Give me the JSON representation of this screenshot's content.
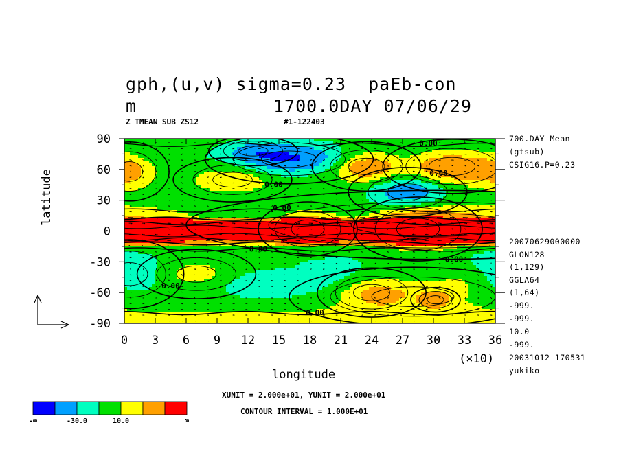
{
  "title": {
    "line1": "gph,(u,v) sigma=0.23  paEb-con",
    "line2_left": "m",
    "line2_right": "1700.0DAY 07/06/29"
  },
  "subtitle_left": "Z TMEAN SUB ZS12",
  "subtitle_right": "#1-122403",
  "side_info_top": [
    "700.DAY Mean",
    "(gtsub)",
    "CSIG16.P=0.23"
  ],
  "side_info_bottom": [
    "20070629000000",
    "GLON128",
    "(1,129)",
    "GGLA64",
    "(1,64)",
    "-999.",
    "-999.",
    "10.0",
    "-999.",
    "20031012 170531",
    "yukiko"
  ],
  "x_multiplier": "(×10)",
  "footer": {
    "units": "XUNIT = 2.000e+01, YUNIT = 2.000e+01",
    "contour": "CONTOUR INTERVAL = 1.000E+01"
  },
  "colorbar": {
    "colors": [
      "#0000ff",
      "#00a0ff",
      "#00ffc0",
      "#00e000",
      "#ffff00",
      "#ffa000",
      "#ff0000"
    ],
    "labels": [
      "-∞",
      "-30.0",
      "10.0",
      "∞"
    ]
  },
  "chart_data": {
    "type": "heatmap",
    "xlabel": "longitude",
    "ylabel": "latitude",
    "xlim": [
      0,
      36
    ],
    "ylim": [
      -90,
      90
    ],
    "x_ticks": [
      0,
      3,
      6,
      9,
      12,
      15,
      18,
      21,
      24,
      27,
      30,
      33,
      36
    ],
    "y_ticks": [
      90,
      60,
      30,
      0,
      -30,
      -60,
      -90
    ],
    "contour_labels": [
      "0.00",
      "0.00",
      "0.00",
      "0.00",
      "0.00",
      "0.00",
      "0.00",
      "0.00"
    ]
  }
}
